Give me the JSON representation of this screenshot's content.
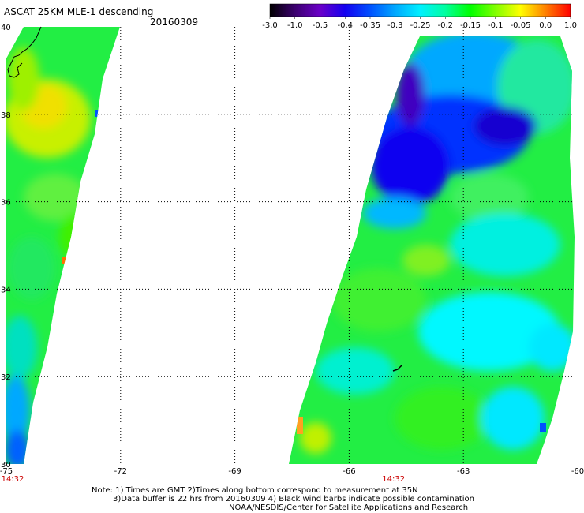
{
  "header": {
    "title": "ASCAT 25KM MLE-1 descending",
    "date": "20160309"
  },
  "colorbar": {
    "labels": [
      "-3.0",
      "-1.0",
      "-0.5",
      "-0.4",
      "-0.35",
      "-0.3",
      "-0.25",
      "-0.2",
      "-0.15",
      "-0.1",
      "-0.05",
      "0.0",
      "1.0"
    ],
    "colors": [
      "#000000",
      "#3b006e",
      "#6a00c8",
      "#1400f0",
      "#0050ff",
      "#00a8ff",
      "#00f0ff",
      "#00ffa0",
      "#00ff00",
      "#80ff00",
      "#ffff00",
      "#ff8000",
      "#ff0000"
    ]
  },
  "map": {
    "lon_labels": [
      "-75",
      "-72",
      "-69",
      "-66",
      "-63",
      "-60"
    ],
    "lat_labels": [
      "40",
      "38",
      "36",
      "34",
      "32",
      "30"
    ],
    "lon_range": [
      -75,
      -60
    ],
    "lat_range": [
      30,
      40
    ],
    "time_labels": [
      {
        "text": "14:32",
        "lon": -75
      },
      {
        "text": "14:32",
        "lon": -65
      }
    ],
    "time_color": "#cc0000"
  },
  "footer": {
    "note_line1": "Note: 1) Times are GMT 2)Times along bottom correspond to measurement at 35N",
    "note_line2": "3)Data buffer is 22 hrs from 20160309 4) Black wind barbs indicate possible contamination",
    "credit": "NOAA/NESDIS/Center for Satellite Applications and Research"
  }
}
